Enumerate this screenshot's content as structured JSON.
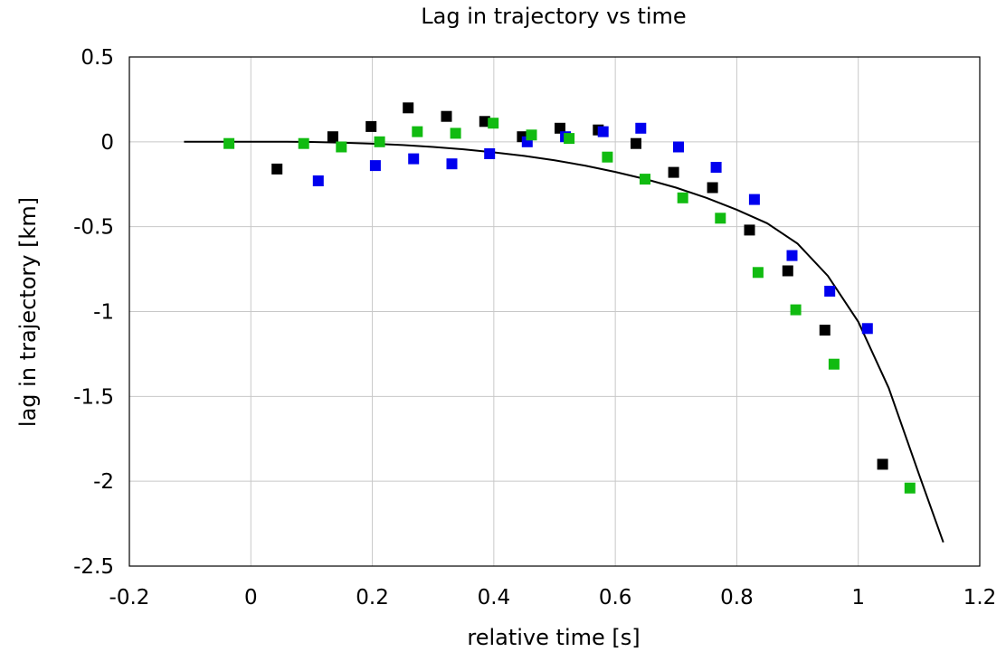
{
  "chart_data": {
    "type": "scatter",
    "title": "Lag in trajectory vs time",
    "xlabel": "relative time [s]",
    "ylabel": "lag in trajectory [km]",
    "xlim": [
      -0.2,
      1.2
    ],
    "ylim": [
      -2.5,
      0.5
    ],
    "xticks": [
      "-0.2",
      "0",
      "0.2",
      "0.4",
      "0.6",
      "0.8",
      "1",
      "1.2"
    ],
    "yticks": [
      "0.5",
      "0",
      "-0.5",
      "-1",
      "-1.5",
      "-2",
      "-2.5"
    ],
    "grid": true,
    "series": [
      {
        "color": "#000000",
        "marker": "square",
        "x": [
          0.043,
          0.135,
          0.198,
          0.259,
          0.322,
          0.385,
          0.447,
          0.509,
          0.572,
          0.634,
          0.696,
          0.76,
          0.821,
          0.884,
          0.945,
          1.04
        ],
        "y": [
          -0.16,
          0.03,
          0.09,
          0.2,
          0.15,
          0.12,
          0.03,
          0.08,
          0.07,
          -0.01,
          -0.18,
          -0.27,
          -0.52,
          -0.76,
          -1.11,
          -1.9
        ]
      },
      {
        "color": "#0000ee",
        "marker": "square",
        "x": [
          0.111,
          0.205,
          0.268,
          0.331,
          0.393,
          0.455,
          0.518,
          0.58,
          0.642,
          0.704,
          0.766,
          0.829,
          0.891,
          0.953,
          1.015
        ],
        "y": [
          -0.23,
          -0.14,
          -0.1,
          -0.13,
          -0.07,
          0.0,
          0.03,
          0.06,
          0.08,
          -0.03,
          -0.15,
          -0.34,
          -0.67,
          -0.88,
          -1.1
        ]
      },
      {
        "color": "#11bb11",
        "marker": "square",
        "x": [
          -0.036,
          0.087,
          0.149,
          0.212,
          0.274,
          0.337,
          0.399,
          0.462,
          0.524,
          0.587,
          0.649,
          0.711,
          0.773,
          0.835,
          0.897,
          0.96,
          1.085
        ],
        "y": [
          -0.01,
          -0.01,
          -0.03,
          0.0,
          0.06,
          0.05,
          0.11,
          0.04,
          0.02,
          -0.09,
          -0.22,
          -0.33,
          -0.45,
          -0.77,
          -0.99,
          -1.31,
          -2.04
        ]
      }
    ],
    "fit_line": {
      "color": "#000000",
      "x": [
        -0.11,
        0.0,
        0.06,
        0.1,
        0.15,
        0.2,
        0.25,
        0.3,
        0.35,
        0.4,
        0.45,
        0.5,
        0.55,
        0.6,
        0.65,
        0.7,
        0.75,
        0.8,
        0.85,
        0.9,
        0.95,
        1.0,
        1.05,
        1.1,
        1.14
      ],
      "y": [
        0.0,
        0.0,
        0.0,
        -0.001,
        -0.005,
        -0.011,
        -0.019,
        -0.03,
        -0.044,
        -0.062,
        -0.083,
        -0.109,
        -0.14,
        -0.177,
        -0.22,
        -0.27,
        -0.33,
        -0.4,
        -0.48,
        -0.6,
        -0.79,
        -1.06,
        -1.45,
        -1.96,
        -2.36
      ]
    }
  }
}
